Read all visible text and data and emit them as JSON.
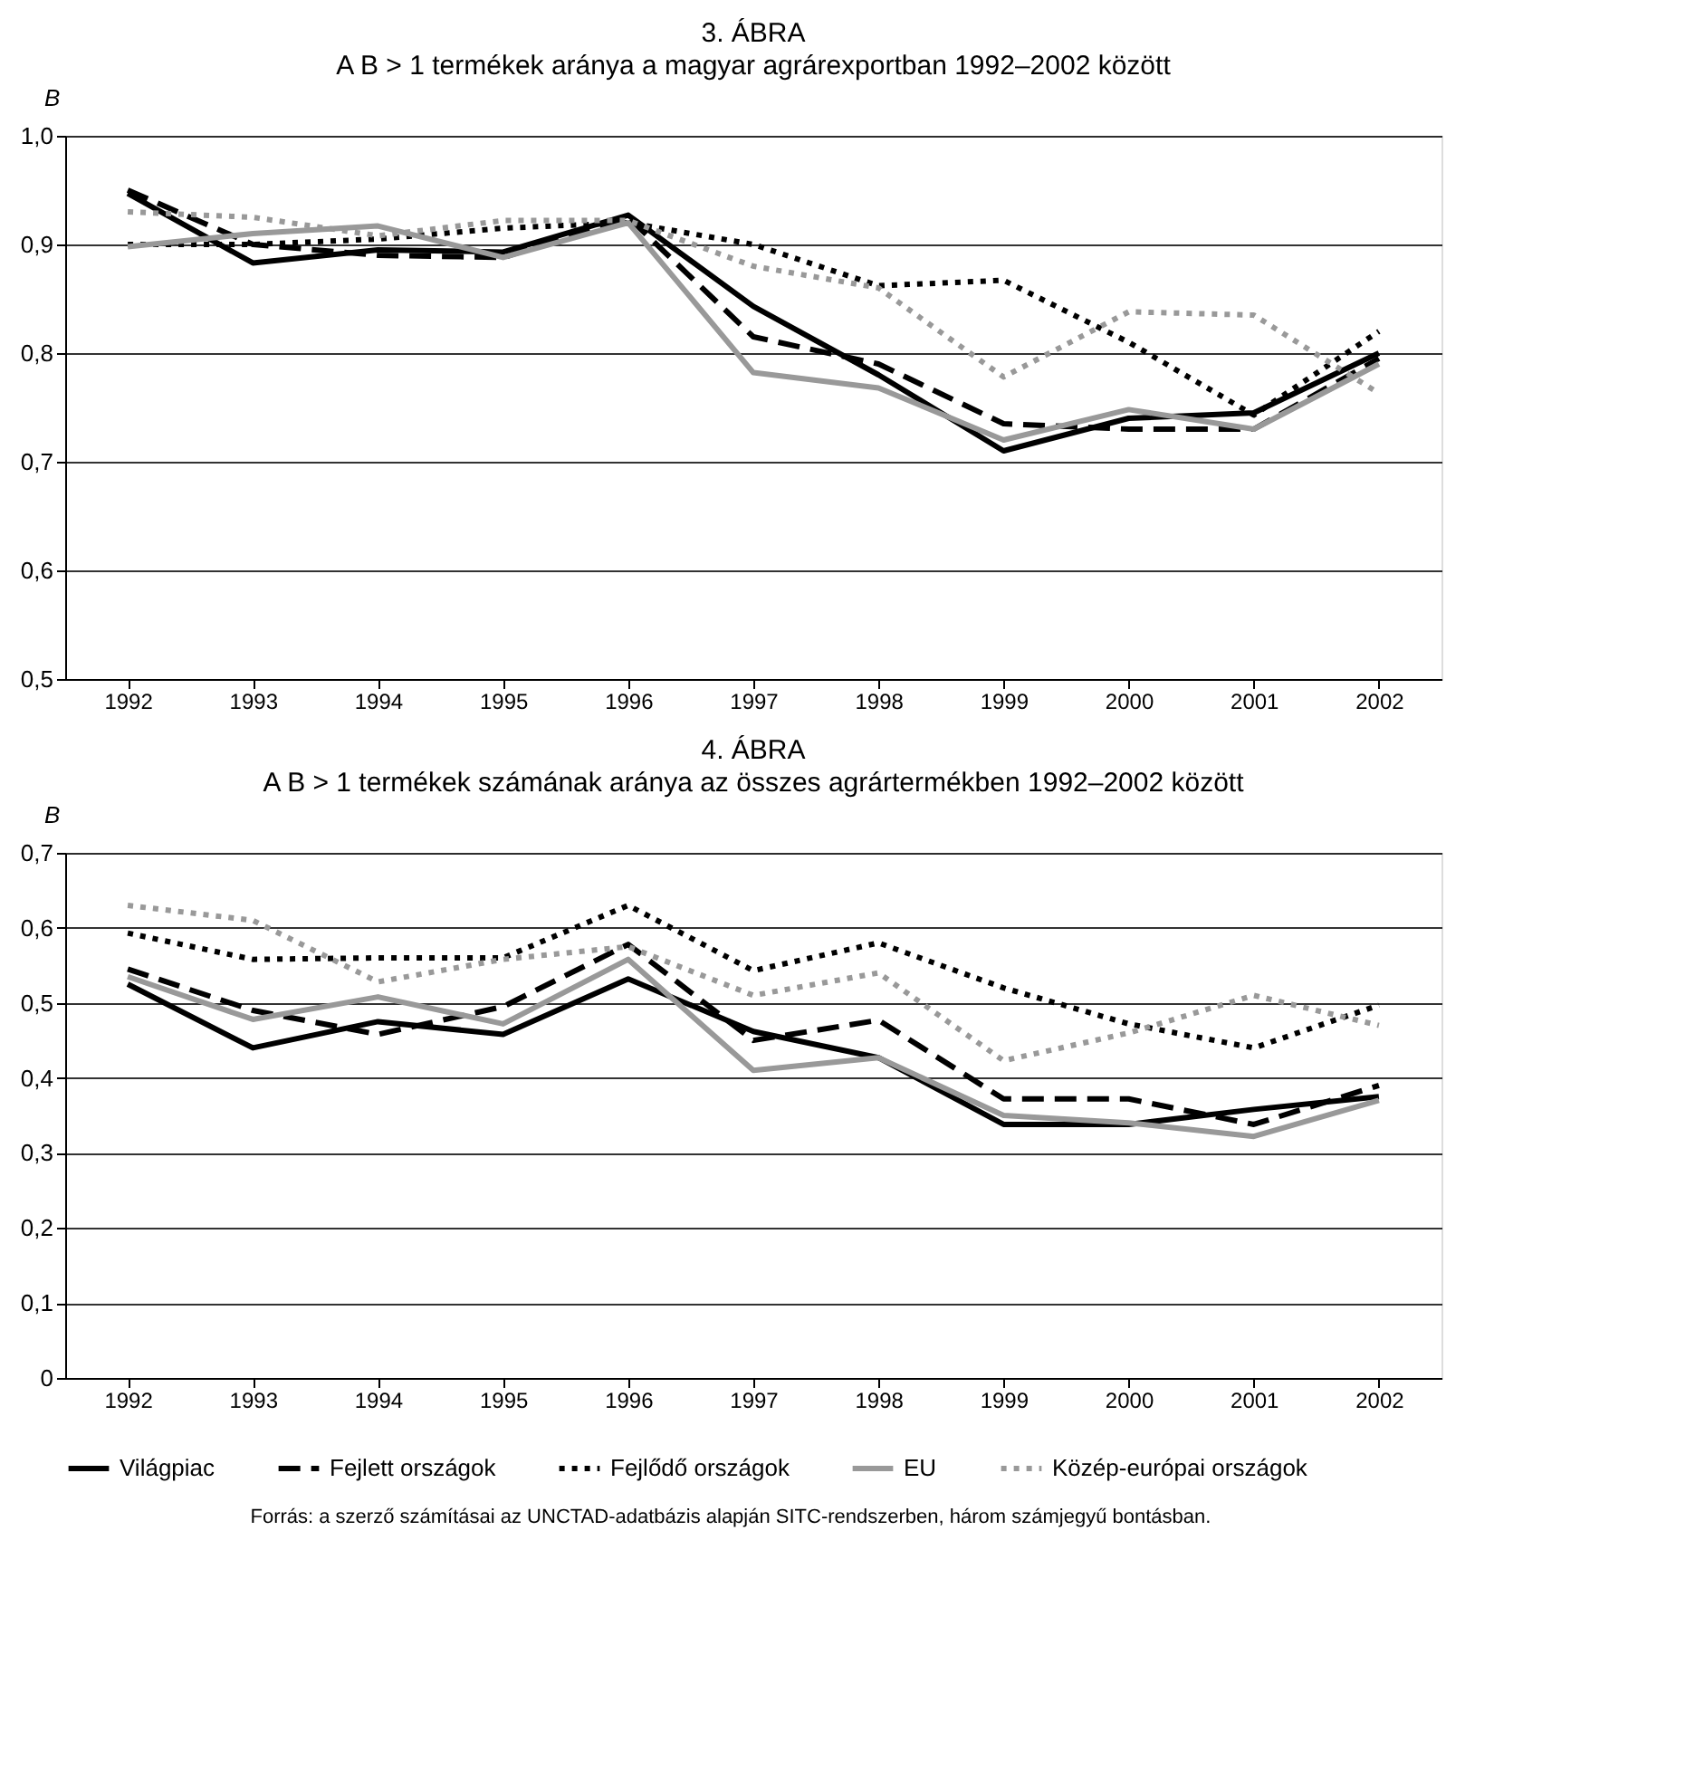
{
  "chart_data": [
    {
      "type": "line",
      "title": "3. ÁBRA",
      "subtitle": "A B > 1 termékek aránya a magyar agrárexportban 1992–2002 között",
      "ylabel": "B",
      "categories": [
        "1992",
        "1993",
        "1994",
        "1995",
        "1996",
        "1997",
        "1998",
        "1999",
        "2000",
        "2001",
        "2002"
      ],
      "ylim": [
        0.5,
        1.0
      ],
      "yticks": [
        {
          "value": 0.5,
          "label": "0,5"
        },
        {
          "value": 0.6,
          "label": "0,6"
        },
        {
          "value": 0.7,
          "label": "0,7"
        },
        {
          "value": 0.8,
          "label": "0,8"
        },
        {
          "value": 0.9,
          "label": "0,9"
        },
        {
          "value": 1.0,
          "label": "1,0"
        }
      ],
      "grid": "y",
      "legend": "bottom",
      "series": [
        {
          "name": "Világpiac",
          "color": "#000000",
          "line_style": "solid",
          "values": [
            0.947,
            0.883,
            0.895,
            0.893,
            0.927,
            0.843,
            0.78,
            0.71,
            0.74,
            0.745,
            0.8
          ]
        },
        {
          "name": "Fejlett országok",
          "color": "#000000",
          "line_style": "dashed",
          "values": [
            0.95,
            0.9,
            0.89,
            0.888,
            0.925,
            0.815,
            0.79,
            0.735,
            0.73,
            0.73,
            0.795
          ]
        },
        {
          "name": "Fejlődő országok",
          "color": "#000000",
          "line_style": "dotted",
          "values": [
            0.9,
            0.9,
            0.905,
            0.915,
            0.92,
            0.9,
            0.862,
            0.867,
            0.81,
            0.743,
            0.82
          ]
        },
        {
          "name": "EU",
          "color": "#999999",
          "line_style": "solid",
          "values": [
            0.898,
            0.91,
            0.917,
            0.888,
            0.92,
            0.782,
            0.768,
            0.72,
            0.748,
            0.73,
            0.79
          ]
        },
        {
          "name": "Közép-európai országok",
          "color": "#999999",
          "line_style": "dotted",
          "values": [
            0.93,
            0.925,
            0.908,
            0.922,
            0.922,
            0.88,
            0.86,
            0.778,
            0.838,
            0.835,
            0.763
          ]
        }
      ]
    },
    {
      "type": "line",
      "title": "4. ÁBRA",
      "subtitle": "A B > 1 termékek számának aránya az összes agrártermékben 1992–2002 között",
      "ylabel": "B",
      "categories": [
        "1992",
        "1993",
        "1994",
        "1995",
        "1996",
        "1997",
        "1998",
        "1999",
        "2000",
        "2001",
        "2002"
      ],
      "ylim": [
        0,
        0.7
      ],
      "yticks": [
        0,
        {
          "value": 0.1,
          "label": "0,1"
        },
        {
          "value": 0.2,
          "label": "0,2"
        },
        {
          "value": 0.3,
          "label": "0,3"
        },
        {
          "value": 0.4,
          "label": "0,4"
        },
        {
          "value": 0.5,
          "label": "0,5"
        },
        {
          "value": 0.6,
          "label": "0,6"
        },
        {
          "value": 0.7,
          "label": "0,7"
        }
      ],
      "grid": "y",
      "legend": "bottom",
      "annotations": [
        "Forrás: a szerző számításai az UNCTAD-adatbázis alapján SITC-rendszerben, három számjegyű bontásban."
      ],
      "series": [
        {
          "name": "Világpiac",
          "color": "#000000",
          "line_style": "solid",
          "values": [
            0.525,
            0.44,
            0.475,
            0.458,
            0.532,
            0.462,
            0.427,
            0.338,
            0.338,
            0.358,
            0.375
          ]
        },
        {
          "name": "Fejlett országok",
          "color": "#000000",
          "line_style": "dashed",
          "values": [
            0.545,
            0.49,
            0.458,
            0.495,
            0.578,
            0.45,
            0.477,
            0.372,
            0.372,
            0.338,
            0.39
          ]
        },
        {
          "name": "Fejlődő országok",
          "color": "#000000",
          "line_style": "dotted",
          "values": [
            0.593,
            0.558,
            0.56,
            0.56,
            0.63,
            0.543,
            0.58,
            0.52,
            0.472,
            0.44,
            0.497
          ]
        },
        {
          "name": "EU",
          "color": "#999999",
          "line_style": "solid",
          "values": [
            0.535,
            0.478,
            0.508,
            0.472,
            0.558,
            0.41,
            0.427,
            0.35,
            0.34,
            0.322,
            0.37
          ]
        },
        {
          "name": "Közép-európai országok",
          "color": "#999999",
          "line_style": "dotted",
          "values": [
            0.63,
            0.61,
            0.528,
            0.558,
            0.575,
            0.51,
            0.54,
            0.423,
            0.46,
            0.51,
            0.47
          ]
        }
      ]
    }
  ]
}
